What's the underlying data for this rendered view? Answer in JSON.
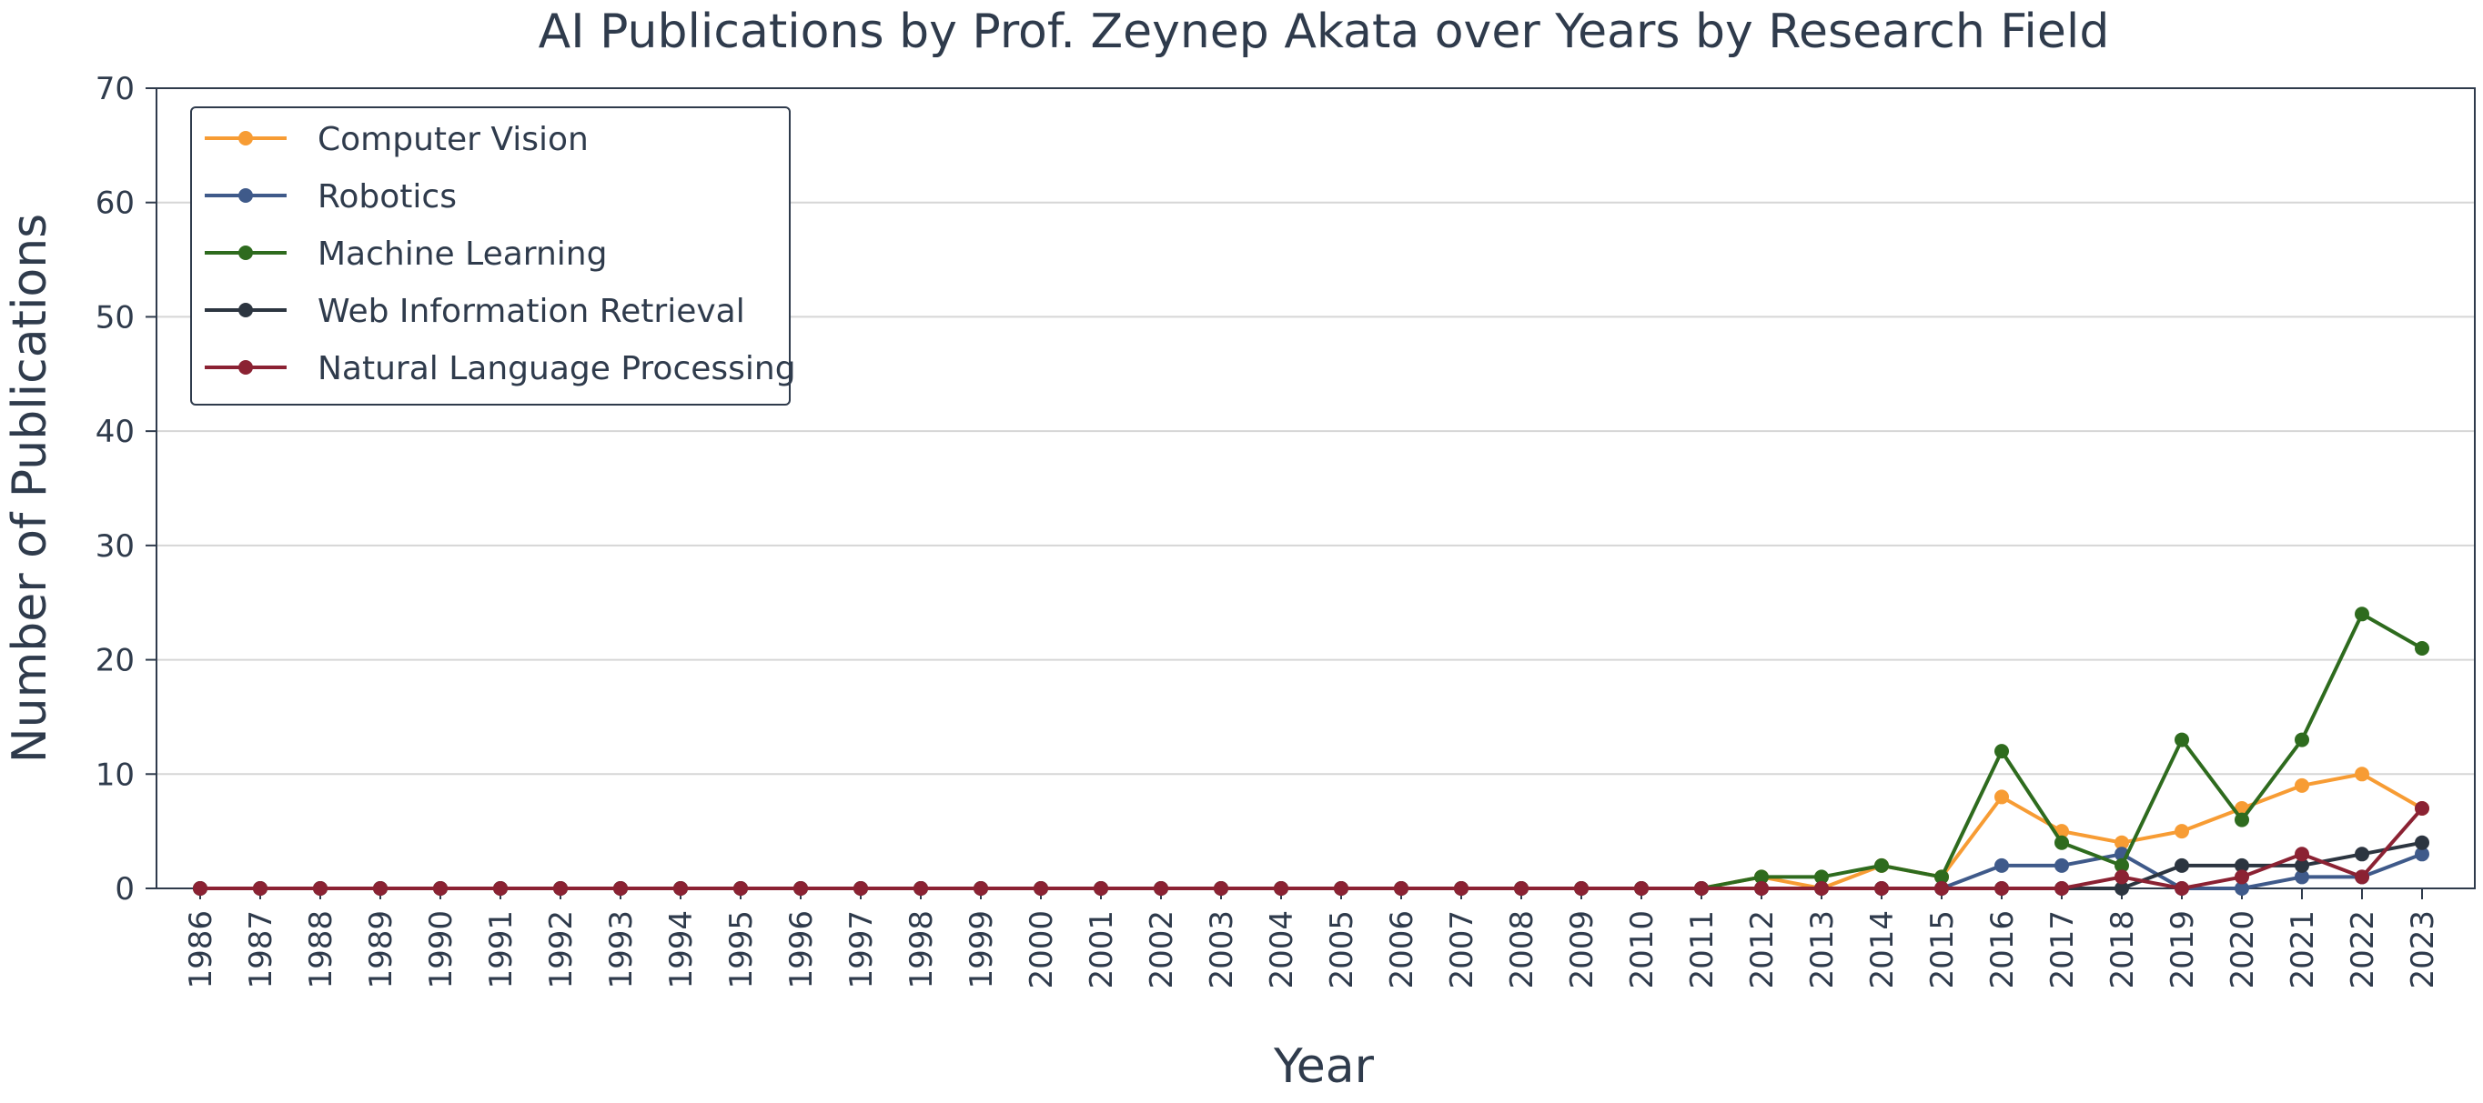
{
  "chart_data": {
    "type": "line",
    "title": "AI Publications by Prof. Zeynep Akata over Years by Research Field",
    "xlabel": "Year",
    "ylabel": "Number of Publications",
    "ylim": [
      0,
      70
    ],
    "yticks": [
      0,
      10,
      20,
      30,
      40,
      50,
      60,
      70
    ],
    "grid": "horizontal",
    "legend_position": "top-left",
    "x": [
      "1986",
      "1987",
      "1988",
      "1989",
      "1990",
      "1991",
      "1992",
      "1993",
      "1994",
      "1995",
      "1996",
      "1997",
      "1998",
      "1999",
      "2000",
      "2001",
      "2002",
      "2003",
      "2004",
      "2005",
      "2006",
      "2007",
      "2008",
      "2009",
      "2010",
      "2011",
      "2012",
      "2013",
      "2014",
      "2015",
      "2016",
      "2017",
      "2018",
      "2019",
      "2020",
      "2021",
      "2022",
      "2023"
    ],
    "series": [
      {
        "name": "Computer Vision",
        "color": "#f79c34",
        "values": [
          0,
          0,
          0,
          0,
          0,
          0,
          0,
          0,
          0,
          0,
          0,
          0,
          0,
          0,
          0,
          0,
          0,
          0,
          0,
          0,
          0,
          0,
          0,
          0,
          0,
          0,
          1,
          0,
          2,
          1,
          8,
          5,
          4,
          5,
          7,
          9,
          10,
          7
        ]
      },
      {
        "name": "Robotics",
        "color": "#3f5a8a",
        "values": [
          0,
          0,
          0,
          0,
          0,
          0,
          0,
          0,
          0,
          0,
          0,
          0,
          0,
          0,
          0,
          0,
          0,
          0,
          0,
          0,
          0,
          0,
          0,
          0,
          0,
          0,
          0,
          0,
          0,
          0,
          2,
          2,
          3,
          0,
          0,
          1,
          1,
          3
        ]
      },
      {
        "name": "Machine Learning",
        "color": "#2e6b1e",
        "values": [
          0,
          0,
          0,
          0,
          0,
          0,
          0,
          0,
          0,
          0,
          0,
          0,
          0,
          0,
          0,
          0,
          0,
          0,
          0,
          0,
          0,
          0,
          0,
          0,
          0,
          0,
          1,
          1,
          2,
          1,
          12,
          4,
          2,
          13,
          6,
          13,
          24,
          21
        ]
      },
      {
        "name": "Web Information Retrieval",
        "color": "#2c3540",
        "values": [
          0,
          0,
          0,
          0,
          0,
          0,
          0,
          0,
          0,
          0,
          0,
          0,
          0,
          0,
          0,
          0,
          0,
          0,
          0,
          0,
          0,
          0,
          0,
          0,
          0,
          0,
          0,
          0,
          0,
          0,
          0,
          0,
          0,
          2,
          2,
          2,
          3,
          4
        ]
      },
      {
        "name": "Natural Language Processing",
        "color": "#8b2233",
        "values": [
          0,
          0,
          0,
          0,
          0,
          0,
          0,
          0,
          0,
          0,
          0,
          0,
          0,
          0,
          0,
          0,
          0,
          0,
          0,
          0,
          0,
          0,
          0,
          0,
          0,
          0,
          0,
          0,
          0,
          0,
          0,
          0,
          1,
          0,
          1,
          3,
          1,
          7
        ]
      }
    ]
  },
  "colors": {
    "axis": "#2f3b4c",
    "grid": "#d6d6d6"
  }
}
